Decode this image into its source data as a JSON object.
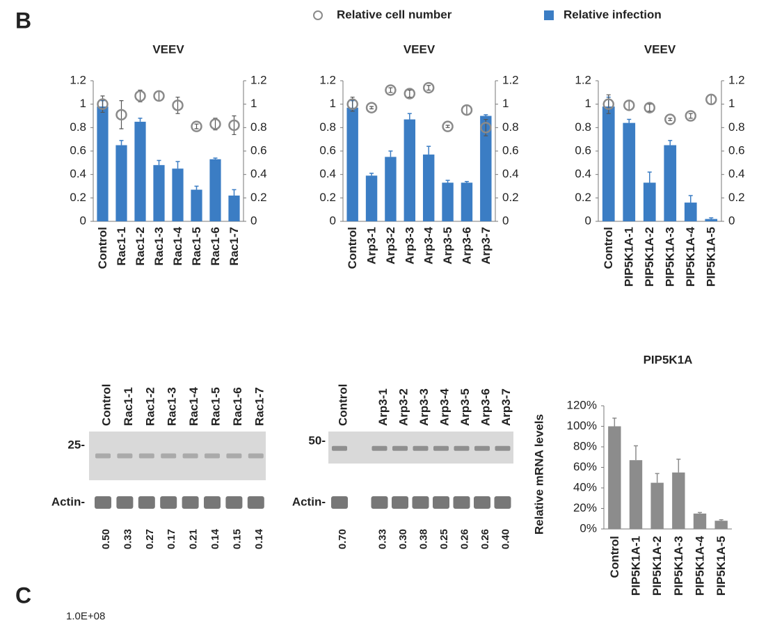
{
  "panel_labels": [
    "B",
    "C"
  ],
  "chart_data": [
    {
      "type": "bar",
      "title": "VEEV",
      "categories": [
        "Control",
        "Rac1-1",
        "Rac1-2",
        "Rac1-3",
        "Rac1-4",
        "Rac1-5",
        "Rac1-6",
        "Rac1-7"
      ],
      "series": [
        {
          "name": "Relative infection",
          "type": "bar",
          "color": "#3b7dc4",
          "values": [
            0.98,
            0.65,
            0.85,
            0.48,
            0.45,
            0.27,
            0.53,
            0.22
          ],
          "errors": [
            0.05,
            0.04,
            0.03,
            0.04,
            0.06,
            0.03,
            0.01,
            0.05
          ]
        },
        {
          "name": "Relative cell number",
          "type": "scatter",
          "color": "#8a8a8a",
          "values": [
            1.0,
            0.91,
            1.07,
            1.07,
            0.99,
            0.81,
            0.83,
            0.82
          ],
          "errors": [
            0.07,
            0.12,
            0.05,
            0.04,
            0.07,
            0.02,
            0.05,
            0.08
          ]
        }
      ],
      "ylim": [
        0,
        1.2
      ],
      "yticks": [
        0,
        0.2,
        0.4,
        0.6,
        0.8,
        1,
        1.2
      ],
      "y2lim": [
        0,
        1.2
      ],
      "y2ticks": [
        0,
        0.2,
        0.4,
        0.6,
        0.8,
        1,
        1.2
      ]
    },
    {
      "type": "bar",
      "title": "VEEV",
      "categories": [
        "Control",
        "Arp3-1",
        "Arp3-2",
        "Arp3-3",
        "Arp3-4",
        "Arp3-5",
        "Arp3-6",
        "Arp3-7"
      ],
      "series": [
        {
          "name": "Relative infection",
          "type": "bar",
          "color": "#3b7dc4",
          "values": [
            0.97,
            0.39,
            0.55,
            0.87,
            0.57,
            0.33,
            0.33,
            0.9
          ],
          "errors": [
            0.06,
            0.02,
            0.05,
            0.05,
            0.07,
            0.02,
            0.01,
            0.01
          ]
        },
        {
          "name": "Relative cell number",
          "type": "scatter",
          "color": "#8a8a8a",
          "values": [
            1.0,
            0.97,
            1.12,
            1.09,
            1.14,
            0.81,
            0.95,
            0.8
          ],
          "errors": [
            0.06,
            0.01,
            0.02,
            0.03,
            0.02,
            0.01,
            0.04,
            0.07
          ]
        }
      ],
      "ylim": [
        0,
        1.2
      ],
      "yticks": [
        0,
        0.2,
        0.4,
        0.6,
        0.8,
        1,
        1.2
      ],
      "y2lim": [
        0,
        1.2
      ],
      "y2ticks": [
        0,
        0.2,
        0.4,
        0.6,
        0.8,
        1,
        1.2
      ]
    },
    {
      "type": "bar",
      "title": "VEEV",
      "categories": [
        "Control",
        "PIP5K1A-1",
        "PIP5K1A-2",
        "PIP5K1A-3",
        "PIP5K1A-4",
        "PIP5K1A-5"
      ],
      "series": [
        {
          "name": "Relative infection",
          "type": "bar",
          "color": "#3b7dc4",
          "values": [
            0.98,
            0.84,
            0.33,
            0.65,
            0.16,
            0.02
          ],
          "errors": [
            0.08,
            0.03,
            0.09,
            0.04,
            0.06,
            0.01
          ]
        },
        {
          "name": "Relative cell number",
          "type": "scatter",
          "color": "#8a8a8a",
          "values": [
            1.0,
            0.99,
            0.97,
            0.87,
            0.9,
            1.04
          ],
          "errors": [
            0.08,
            0.04,
            0.03,
            0.01,
            0.02,
            0.04
          ]
        }
      ],
      "ylim": [
        0,
        1.2
      ],
      "yticks": [
        0,
        0.2,
        0.4,
        0.6,
        0.8,
        1,
        1.2
      ],
      "y2lim": [
        0,
        1.2
      ],
      "y2ticks": [
        0,
        0.2,
        0.4,
        0.6,
        0.8,
        1,
        1.2
      ]
    },
    {
      "type": "bar",
      "title": "PIP5K1A",
      "y_label": "Relative mRNA levels",
      "categories": [
        "Control",
        "PIP5K1A-1",
        "PIP5K1A-2",
        "PIP5K1A-3",
        "PIP5K1A-4",
        "PIP5K1A-5"
      ],
      "values": [
        100,
        67,
        45,
        55,
        15,
        8
      ],
      "errors": [
        8,
        14,
        9,
        13,
        1,
        1
      ],
      "color": "#8c8c8c",
      "ylim": [
        0,
        120
      ],
      "yticks": [
        {
          "value": 0,
          "label": "0%"
        },
        {
          "value": 20,
          "label": "20%"
        },
        {
          "value": 40,
          "label": "40%"
        },
        {
          "value": 60,
          "label": "60%"
        },
        {
          "value": 80,
          "label": "80%"
        },
        {
          "value": 100,
          "label": "100%"
        },
        {
          "value": 120,
          "label": "120%"
        }
      ]
    }
  ],
  "blots": [
    {
      "lanes": [
        "Control",
        "Rac1-1",
        "Rac1-2",
        "Rac1-3",
        "Rac1-4",
        "Rac1-5",
        "Rac1-6",
        "Rac1-7"
      ],
      "size_marker": "25-",
      "loading_label": "Actin-",
      "quantification": [
        "0.50",
        "0.33",
        "0.27",
        "0.17",
        "0.21",
        "0.14",
        "0.15",
        "0.14"
      ]
    },
    {
      "lanes": [
        "Control",
        "Arp3-1",
        "Arp3-2",
        "Arp3-3",
        "Arp3-4",
        "Arp3-5",
        "Arp3-6",
        "Arp3-7"
      ],
      "size_marker": "50-",
      "loading_label": "Actin-",
      "quantification": [
        "0.70",
        "0.33",
        "0.30",
        "0.38",
        "0.25",
        "0.26",
        "0.26",
        "0.40"
      ]
    }
  ],
  "panel_c": {
    "tick_label": "1.0E+08"
  }
}
